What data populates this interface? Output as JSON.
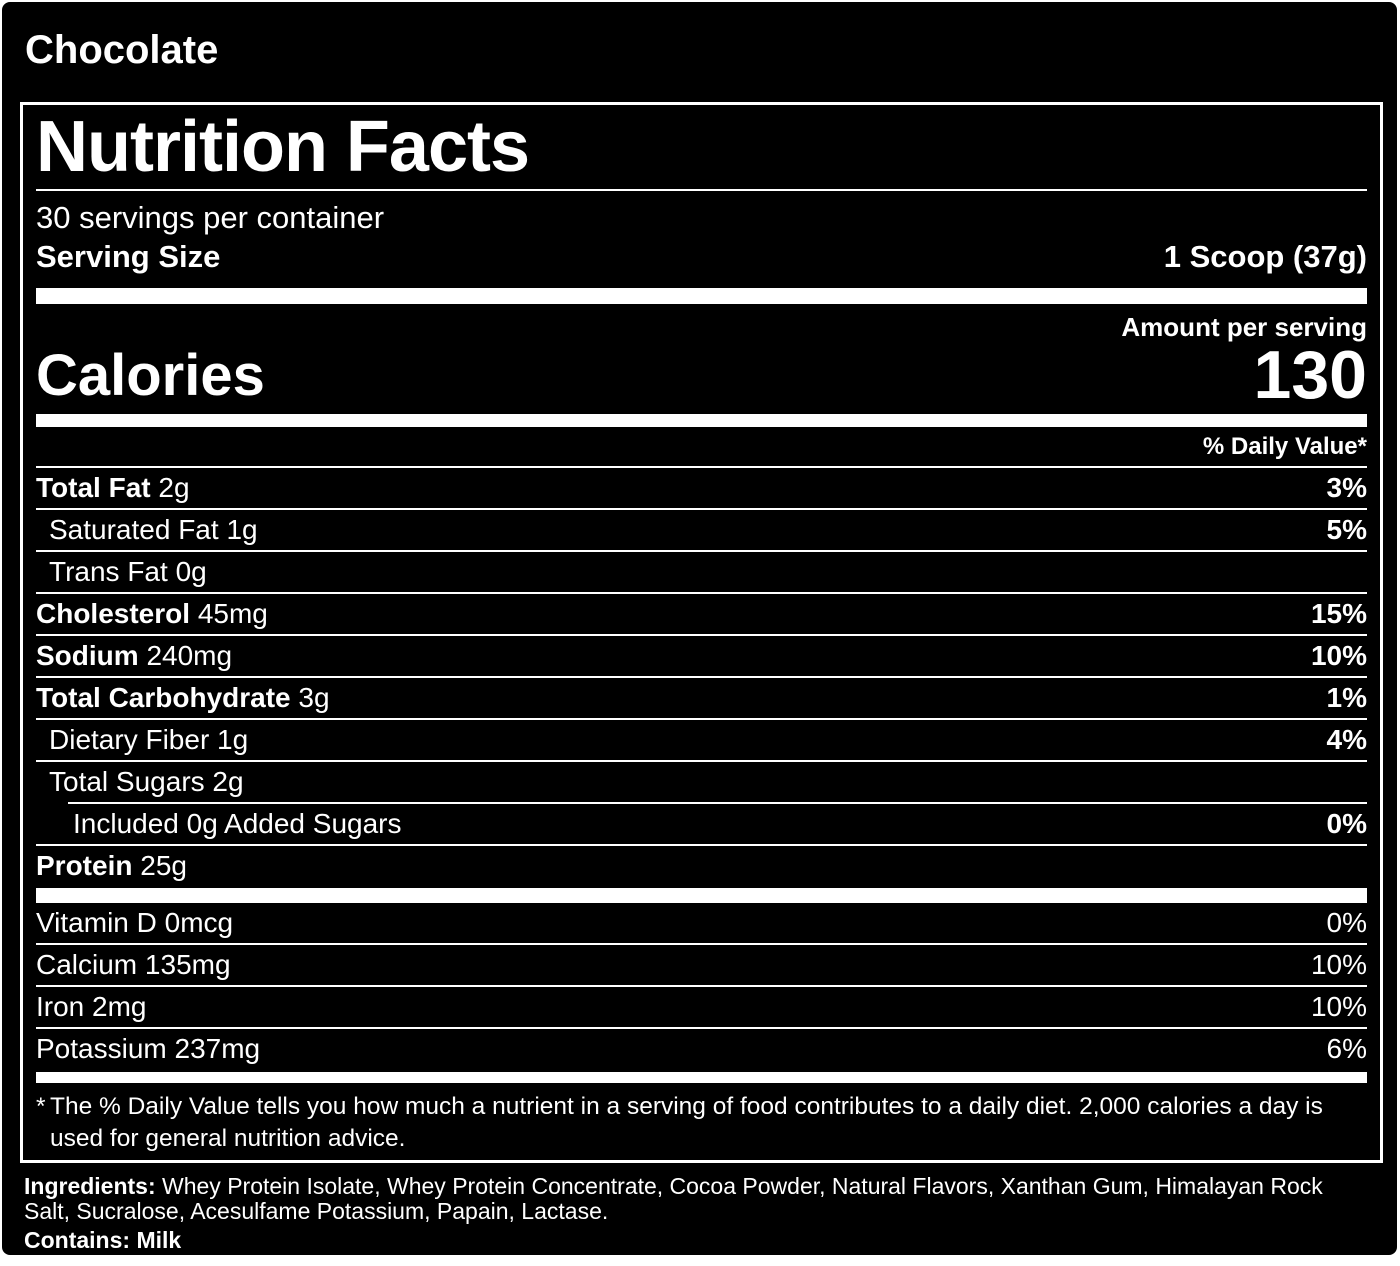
{
  "flavor": "Chocolate",
  "label": {
    "title": "Nutrition Facts",
    "servings_per_container": "30 servings per container",
    "serving_size_label": "Serving Size",
    "serving_size_value": "1 Scoop (37g)",
    "amount_per_serving": "Amount per serving",
    "calories_label": "Calories",
    "calories_value": "130",
    "daily_value_header": "% Daily Value*",
    "nutrients": [
      {
        "name": "Total Fat",
        "amount": "2g",
        "dv": "3%",
        "bold": true,
        "indent": 0
      },
      {
        "name": "Saturated Fat",
        "amount": "1g",
        "dv": "5%",
        "bold": false,
        "indent": 1
      },
      {
        "name": "Trans Fat",
        "amount": "0g",
        "dv": "",
        "bold": false,
        "indent": 1
      },
      {
        "name": "Cholesterol",
        "amount": "45mg",
        "dv": "15%",
        "bold": true,
        "indent": 0
      },
      {
        "name": "Sodium",
        "amount": "240mg",
        "dv": "10%",
        "bold": true,
        "indent": 0
      },
      {
        "name": "Total Carbohydrate",
        "amount": "3g",
        "dv": "1%",
        "bold": true,
        "indent": 0
      },
      {
        "name": "Dietary Fiber",
        "amount": "1g",
        "dv": "4%",
        "bold": false,
        "indent": 1
      },
      {
        "name": "Total Sugars",
        "amount": "2g",
        "dv": "",
        "bold": false,
        "indent": 1
      },
      {
        "name": "Included 0g Added Sugars",
        "amount": "",
        "dv": "0%",
        "bold": false,
        "indent": 2
      },
      {
        "name": "Protein",
        "amount": "25g",
        "dv": "",
        "bold": true,
        "indent": 0
      }
    ],
    "vitamins": [
      {
        "name": "Vitamin D",
        "amount": "0mcg",
        "dv": "0%"
      },
      {
        "name": "Calcium",
        "amount": "135mg",
        "dv": "10%"
      },
      {
        "name": "Iron",
        "amount": "2mg",
        "dv": "10%"
      },
      {
        "name": "Potassium",
        "amount": "237mg",
        "dv": "6%"
      }
    ],
    "footnote_marker": "*",
    "footnote": "The % Daily Value tells you how much a nutrient in a serving of food contributes to a daily diet. 2,000 calories a day is used for general nutrition advice."
  },
  "ingredients": {
    "label": "Ingredients:",
    "text": "Whey Protein Isolate, Whey Protein Concentrate, Cocoa Powder, Natural Flavors, Xanthan Gum, Himalayan Rock Salt, Sucralose, Acesulfame Potassium, Papain, Lactase.",
    "contains": "Contains: Milk"
  },
  "colors": {
    "background": "#000000",
    "text": "#ffffff"
  }
}
